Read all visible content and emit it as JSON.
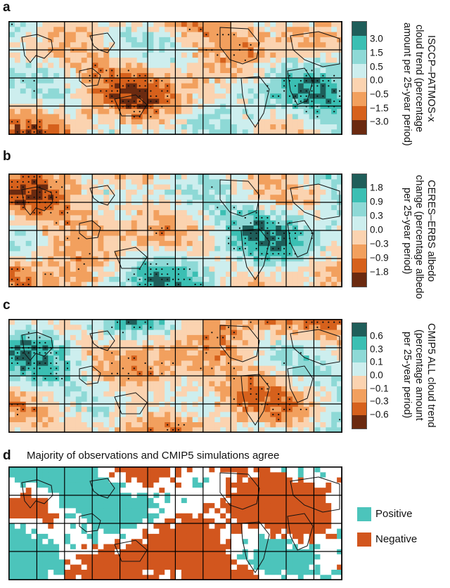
{
  "panels": [
    {
      "label": "a",
      "title_lines": [
        "ISCCP–PATMOS-x",
        "cloud trend (percentage",
        "amount per 25-year period)"
      ],
      "colorbar_ticks": [
        "3.0",
        "1.5",
        "0.5",
        "0.0",
        "−0.5",
        "−1.5",
        "−3.0"
      ]
    },
    {
      "label": "b",
      "title_lines": [
        "CERES–ERBS albedo",
        "change (percentage albedo",
        "per 25-year period)"
      ],
      "colorbar_ticks": [
        "1.8",
        "0.9",
        "0.3",
        "0.0",
        "−0.3",
        "−0.9",
        "−1.8"
      ]
    },
    {
      "label": "c",
      "title_lines": [
        "CMIP5 ALL cloud trend",
        "(percentage amount",
        "per 25-year period)"
      ],
      "colorbar_ticks": [
        "0.6",
        "0.3",
        "0.1",
        "0.0",
        "−0.1",
        "−0.3",
        "−0.6"
      ]
    },
    {
      "label": "d",
      "title": "Majority of observations and CMIP5 simulations agree",
      "legend": [
        "Positive",
        "Negative"
      ]
    }
  ],
  "colors": {
    "scale": [
      "#1f5e5a",
      "#3bbfb3",
      "#8ed9d6",
      "#cdeeee",
      "#fbd3b0",
      "#f2a05e",
      "#d6611c",
      "#6b2a10"
    ],
    "positive": "#4cc4bb",
    "negative": "#d2561e"
  }
}
